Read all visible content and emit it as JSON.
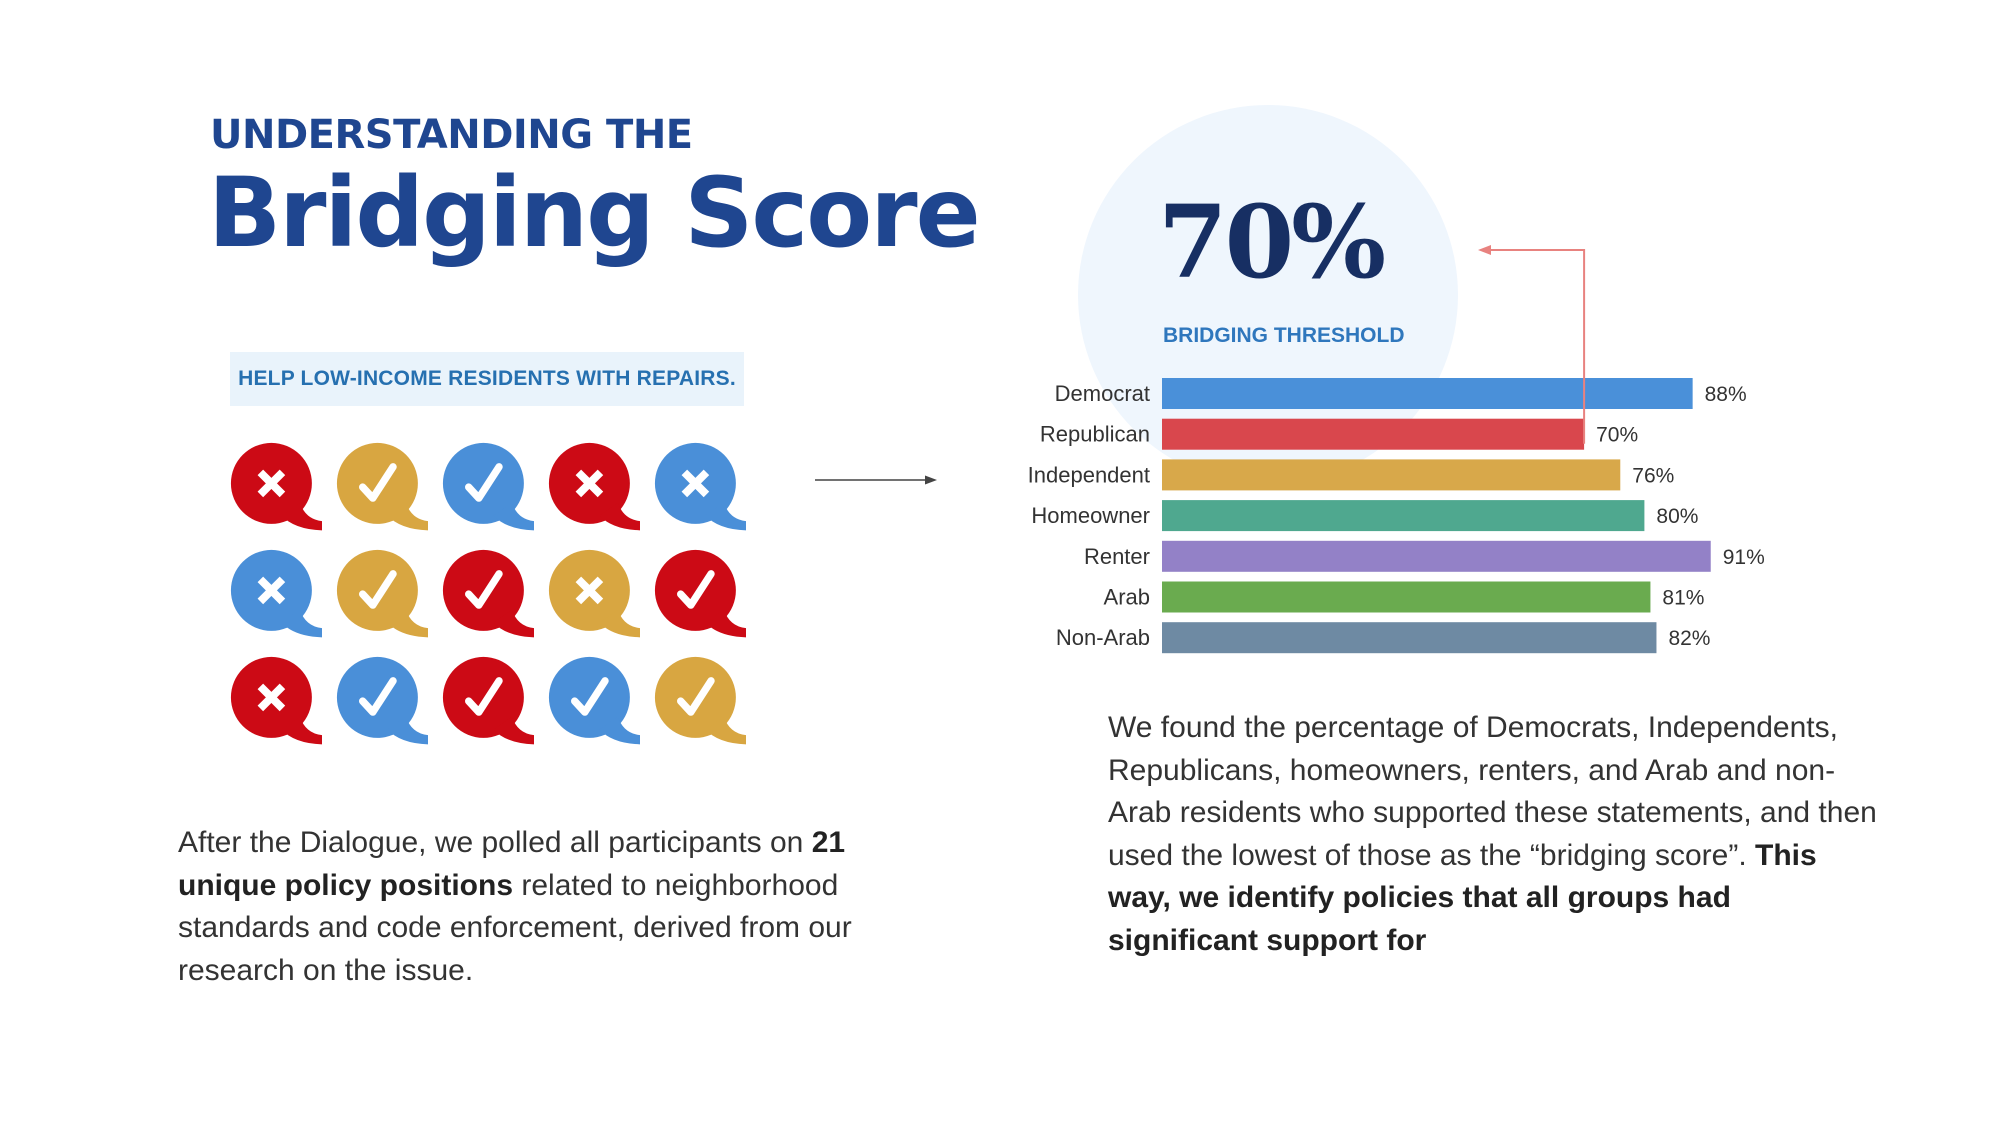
{
  "heading": {
    "kicker": "UNDERSTANDING THE",
    "title": "Bridging Score"
  },
  "statement": "HELP LOW-INCOME RESIDENTS WITH REPAIRS.",
  "vote_grid": {
    "colors": {
      "red": "#cc0a15",
      "gold": "#d8a641",
      "blue": "#4a8fd8"
    },
    "rows": [
      [
        {
          "color": "red",
          "mark": "x"
        },
        {
          "color": "gold",
          "mark": "check"
        },
        {
          "color": "blue",
          "mark": "check"
        },
        {
          "color": "red",
          "mark": "x"
        },
        {
          "color": "blue",
          "mark": "x"
        }
      ],
      [
        {
          "color": "blue",
          "mark": "x"
        },
        {
          "color": "gold",
          "mark": "check"
        },
        {
          "color": "red",
          "mark": "check"
        },
        {
          "color": "gold",
          "mark": "x"
        },
        {
          "color": "red",
          "mark": "check"
        }
      ],
      [
        {
          "color": "red",
          "mark": "x"
        },
        {
          "color": "blue",
          "mark": "check"
        },
        {
          "color": "red",
          "mark": "check"
        },
        {
          "color": "blue",
          "mark": "check"
        },
        {
          "color": "gold",
          "mark": "check"
        }
      ]
    ]
  },
  "left_paragraph": {
    "before": "After the Dialogue, we polled all participants on ",
    "bold": "21 unique policy positions",
    "after": " related to neighborhood standards and code enforcement, derived from our research on the issue."
  },
  "threshold": {
    "value": "70%",
    "label": "BRIDGING THRESHOLD"
  },
  "chart_data": {
    "type": "bar",
    "orientation": "horizontal",
    "categories": [
      "Democrat",
      "Republican",
      "Independent",
      "Homeowner",
      "Renter",
      "Arab",
      "Non-Arab"
    ],
    "values": [
      88,
      70,
      76,
      80,
      91,
      81,
      82
    ],
    "value_labels": [
      "88%",
      "70%",
      "76%",
      "80%",
      "91%",
      "81%",
      "82%"
    ],
    "colors": [
      "#4a90d9",
      "#d9474d",
      "#d8a84a",
      "#4fa88f",
      "#9381c7",
      "#6aab4f",
      "#6e8aa3"
    ],
    "title": "",
    "xlabel": "",
    "ylabel": "",
    "xlim": [
      0,
      100
    ],
    "annotation_color": "#e8827f"
  },
  "right_paragraph": {
    "before": "We found the percentage of Democrats, Independents, Republicans, homeowners, renters, and Arab and non-Arab residents who supported these statements, and then used the lowest of those as the “bridging score”. ",
    "bold": "This way, we identify policies that all groups had significant support for"
  }
}
